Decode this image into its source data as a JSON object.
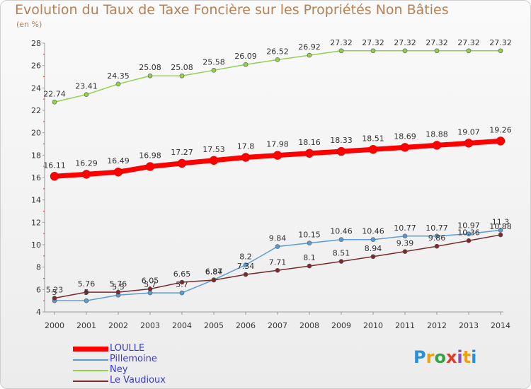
{
  "chart_data": {
    "type": "line",
    "title": "Evolution du Taux de Taxe Foncière sur les Propriétés Non Bâties",
    "ylabel": "(en %)",
    "xlabel": "",
    "x": [
      "2000",
      "2001",
      "2002",
      "2003",
      "2004",
      "2005",
      "2006",
      "2007",
      "2008",
      "2009",
      "2010",
      "2011",
      "2012",
      "2013",
      "2014"
    ],
    "ylim": [
      4,
      28
    ],
    "yticks": [
      4,
      6,
      8,
      10,
      12,
      14,
      16,
      18,
      20,
      22,
      24,
      26,
      28
    ],
    "grid": false,
    "legend": "bottom-left",
    "series": [
      {
        "name": "LOULLE",
        "color": "#ff0000",
        "emphasis": true,
        "values": [
          16.11,
          16.29,
          16.49,
          16.98,
          17.27,
          17.53,
          17.8,
          17.98,
          18.16,
          18.33,
          18.51,
          18.69,
          18.88,
          19.07,
          19.26
        ],
        "labels": [
          "16.11",
          "16.29",
          "16.49",
          "16.98",
          "17.27",
          "17.53",
          "17.8",
          "17.98",
          "18.16",
          "18.33",
          "18.51",
          "18.69",
          "18.88",
          "19.07",
          "19.26"
        ]
      },
      {
        "name": "Pillemoine",
        "color": "#5b9bd5",
        "emphasis": false,
        "values": [
          5,
          5,
          5.5,
          5.7,
          5.7,
          6.87,
          8.2,
          9.84,
          10.15,
          10.46,
          10.46,
          10.77,
          10.77,
          10.97,
          11.3
        ],
        "labels": [
          "5",
          "5",
          "5.5",
          "5.7",
          "5.7",
          "6.87",
          "8.2",
          "9.84",
          "10.15",
          "10.46",
          "10.46",
          "10.77",
          "10.77",
          "10.97",
          "11.3"
        ]
      },
      {
        "name": "Ney",
        "color": "#92d050",
        "emphasis": false,
        "values": [
          22.74,
          23.41,
          24.35,
          25.08,
          25.08,
          25.58,
          26.09,
          26.52,
          26.92,
          27.32,
          27.32,
          27.32,
          27.32,
          27.32,
          27.32
        ],
        "labels": [
          "22.74",
          "23.41",
          "24.35",
          "25.08",
          "25.08",
          "25.58",
          "26.09",
          "26.52",
          "26.92",
          "27.32",
          "27.32",
          "27.32",
          "27.32",
          "27.32",
          "27.32"
        ]
      },
      {
        "name": "Le Vaudioux",
        "color": "#7a2a2a",
        "emphasis": false,
        "values": [
          5.23,
          5.76,
          5.76,
          6.05,
          6.65,
          6.84,
          7.34,
          7.71,
          8.1,
          8.51,
          8.94,
          9.39,
          9.86,
          10.36,
          10.88
        ],
        "labels": [
          "5.23",
          "5.76",
          "5.76",
          "6.05",
          "6.65",
          "6.84",
          "7.34",
          "7.71",
          "8.1",
          "8.51",
          "8.94",
          "9.39",
          "9.86",
          "10.36",
          "10.88"
        ]
      }
    ]
  },
  "brand": {
    "letters": [
      "P",
      "r",
      "o",
      "x",
      "i",
      "t",
      "i"
    ],
    "colors": [
      "#2a8fd6",
      "#e8a21a",
      "#3aa14a",
      "#e03a2a",
      "#8b4fb8",
      "#e8a21a",
      "#2a8fd6"
    ]
  }
}
